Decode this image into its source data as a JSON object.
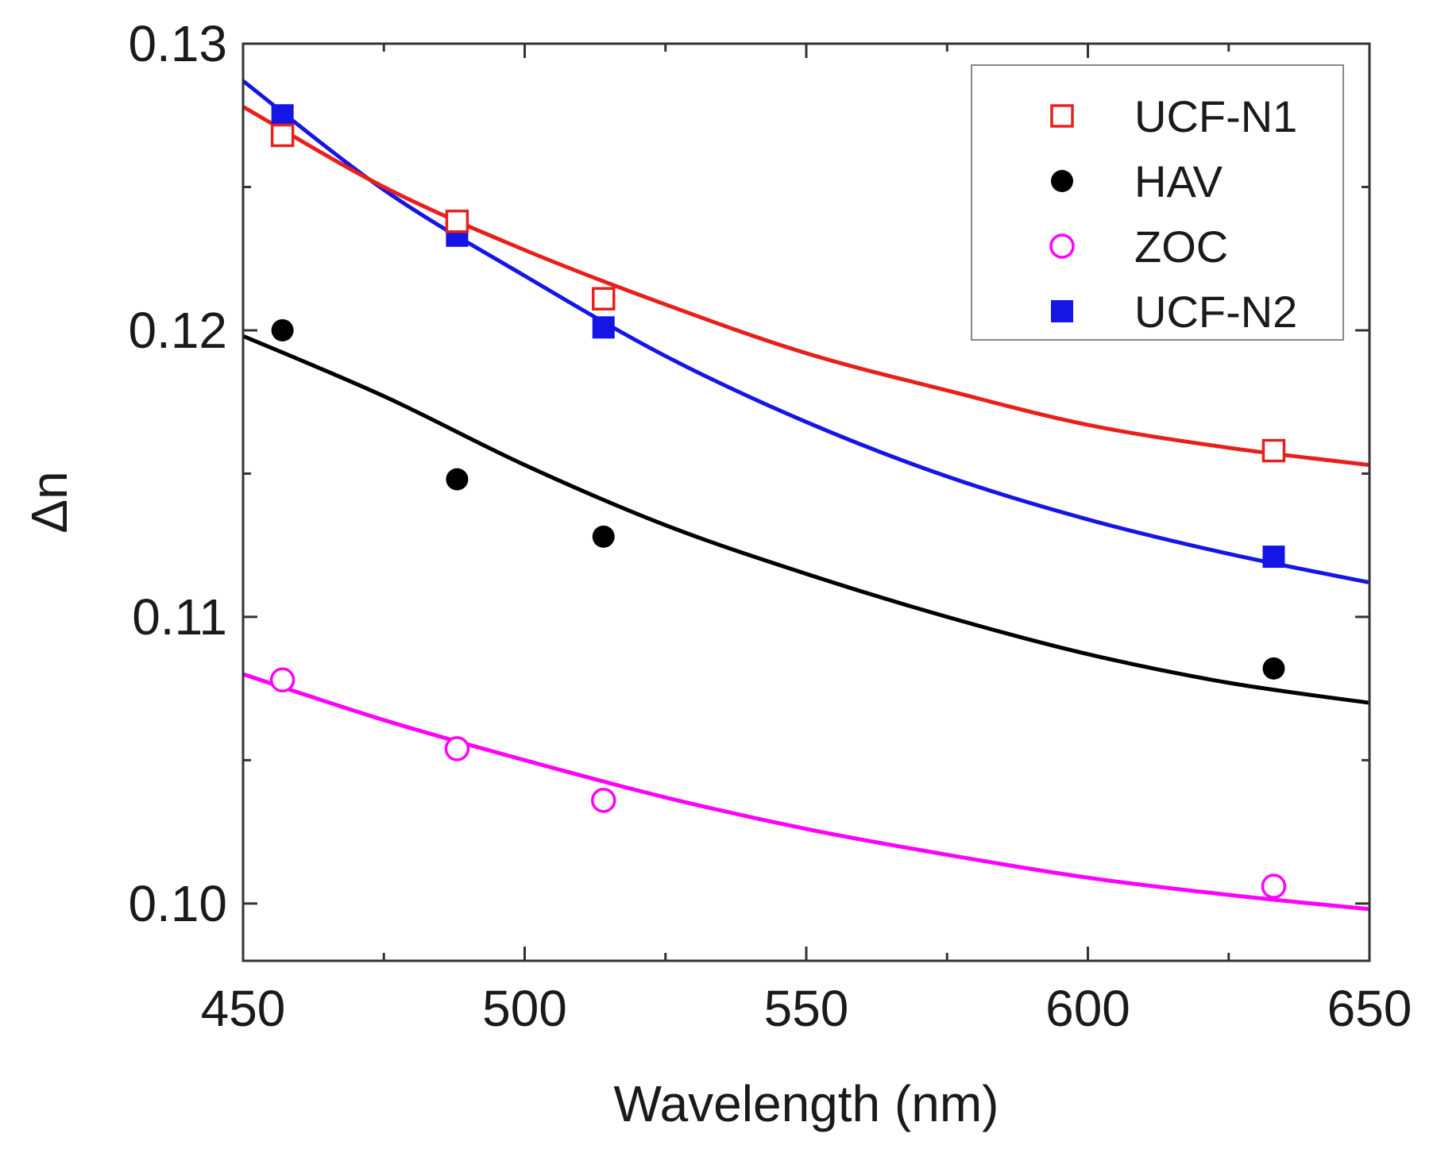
{
  "chart_data": {
    "type": "scatter",
    "title": "",
    "xlabel": "Wavelength (nm)",
    "ylabel": "Δn",
    "xlim": [
      450,
      650
    ],
    "ylim": [
      0.098,
      0.13
    ],
    "x_ticks": [
      450,
      500,
      550,
      600,
      650
    ],
    "x_tick_labels": [
      "450",
      "500",
      "550",
      "600",
      "650"
    ],
    "y_ticks": [
      0.1,
      0.11,
      0.12,
      0.13
    ],
    "y_tick_labels": [
      "0.10",
      "0.11",
      "0.12",
      "0.13"
    ],
    "grid": false,
    "legend_position": "top-right",
    "series": [
      {
        "name": "UCF-N1",
        "color": "#e8201c",
        "marker": "open-square",
        "x": [
          457,
          488,
          514,
          633
        ],
        "y": [
          0.1268,
          0.1238,
          0.1211,
          0.1158
        ],
        "fit": {
          "x": [
            450,
            475,
            500,
            525,
            550,
            575,
            600,
            625,
            650
          ],
          "y": [
            0.1278,
            0.125,
            0.1228,
            0.1209,
            0.1192,
            0.1179,
            0.1167,
            0.1159,
            0.1153
          ]
        }
      },
      {
        "name": "HAV",
        "color": "#000000",
        "marker": "filled-circle",
        "x": [
          457,
          488,
          514,
          633
        ],
        "y": [
          0.12,
          0.1148,
          0.1128,
          0.1082
        ],
        "fit": {
          "x": [
            450,
            475,
            500,
            525,
            550,
            575,
            600,
            625,
            650
          ],
          "y": [
            0.1198,
            0.1177,
            0.1153,
            0.1132,
            0.1115,
            0.11,
            0.1087,
            0.1077,
            0.107
          ]
        }
      },
      {
        "name": "ZOC",
        "color": "#ff00ff",
        "marker": "open-circle",
        "x": [
          457,
          488,
          514,
          633
        ],
        "y": [
          0.1078,
          0.1054,
          0.1036,
          0.1006
        ],
        "fit": {
          "x": [
            450,
            475,
            500,
            525,
            550,
            575,
            600,
            625,
            650
          ],
          "y": [
            0.108,
            0.1064,
            0.105,
            0.1037,
            0.1026,
            0.1017,
            0.1009,
            0.1003,
            0.0998
          ]
        }
      },
      {
        "name": "UCF-N2",
        "color": "#1515e6",
        "marker": "filled-square",
        "x": [
          457,
          488,
          514,
          633
        ],
        "y": [
          0.1275,
          0.1233,
          0.1201,
          0.1121
        ],
        "fit": {
          "x": [
            450,
            475,
            500,
            525,
            550,
            575,
            600,
            625,
            650
          ],
          "y": [
            0.1287,
            0.1249,
            0.1219,
            0.1191,
            0.1168,
            0.1149,
            0.1134,
            0.1122,
            0.1112
          ]
        }
      }
    ]
  }
}
